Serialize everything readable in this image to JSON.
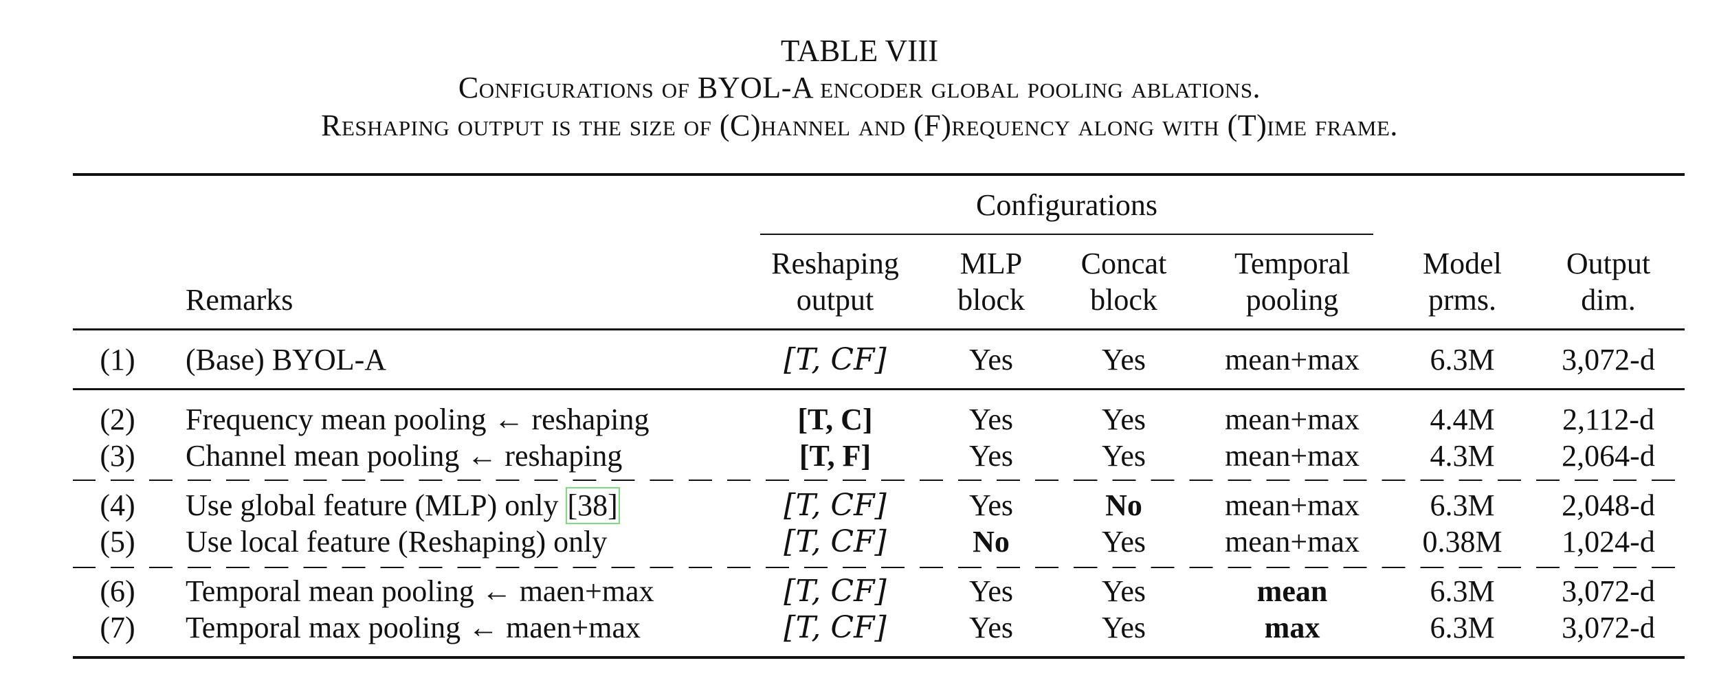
{
  "caption": {
    "title": "TABLE VIII",
    "line1": "Configurations of BYOL-A encoder global pooling ablations.",
    "line2": "Reshaping output is the size of (C)hannel and (F)requency along with (T)ime frame."
  },
  "header": {
    "group": "Configurations",
    "remarks": "Remarks",
    "reshaping_1": "Reshaping",
    "reshaping_2": "output",
    "mlp_1": "MLP",
    "mlp_2": "block",
    "concat_1": "Concat",
    "concat_2": "block",
    "temporal_1": "Temporal",
    "temporal_2": "pooling",
    "model_1": "Model",
    "model_2": "prms.",
    "output_1": "Output",
    "output_2": "dim."
  },
  "rows": [
    {
      "id": "(1)",
      "remark": "(Base) BYOL-A",
      "cite": "",
      "reshape": "[T, CF]",
      "mlp": "Yes",
      "concat": "Yes",
      "temporal": "mean+max",
      "params": "6.3M",
      "dim": "3,072-d"
    },
    {
      "id": "(2)",
      "remark": "Frequency mean pooling ← reshaping",
      "cite": "",
      "reshape": "[T, C]",
      "mlp": "Yes",
      "concat": "Yes",
      "temporal": "mean+max",
      "params": "4.4M",
      "dim": "2,112-d"
    },
    {
      "id": "(3)",
      "remark": "Channel mean pooling ← reshaping",
      "cite": "",
      "reshape": "[T, F]",
      "mlp": "Yes",
      "concat": "Yes",
      "temporal": "mean+max",
      "params": "4.3M",
      "dim": "2,064-d"
    },
    {
      "id": "(4)",
      "remark": "Use global feature (MLP) only ",
      "cite": "[38]",
      "reshape": "[T, CF]",
      "mlp": "Yes",
      "concat": "No",
      "temporal": "mean+max",
      "params": "6.3M",
      "dim": "2,048-d"
    },
    {
      "id": "(5)",
      "remark": "Use local feature (Reshaping) only",
      "cite": "",
      "reshape": "[T, CF]",
      "mlp": "No",
      "concat": "Yes",
      "temporal": "mean+max",
      "params": "0.38M",
      "dim": "1,024-d"
    },
    {
      "id": "(6)",
      "remark": "Temporal mean pooling ← maen+max",
      "cite": "",
      "reshape": "[T, CF]",
      "mlp": "Yes",
      "concat": "Yes",
      "temporal": "mean",
      "params": "6.3M",
      "dim": "3,072-d"
    },
    {
      "id": "(7)",
      "remark": "Temporal max pooling ← maen+max",
      "cite": "",
      "reshape": "[T, CF]",
      "mlp": "Yes",
      "concat": "Yes",
      "temporal": "max",
      "params": "6.3M",
      "dim": "3,072-d"
    }
  ]
}
